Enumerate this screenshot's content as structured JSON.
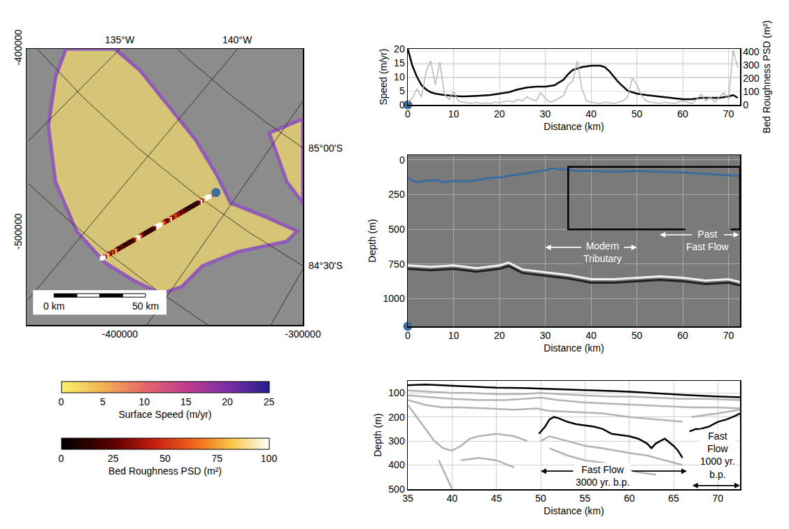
{
  "chart_data": [
    {
      "type": "map",
      "xlim": [
        -451000,
        -300000
      ],
      "ylim": [
        -550000,
        -400000
      ],
      "xticks": [
        -400000,
        -300000
      ],
      "yticks": [
        -500000,
        -400000
      ],
      "grid": false,
      "graticule": [
        {
          "label": "135°W",
          "x": [
            -400000,
            -450000
          ],
          "y": [
            -400000,
            -450000
          ]
        },
        {
          "label": "140°W",
          "x": [
            -335700,
            -450000
          ],
          "y": [
            -400000,
            -536100
          ]
        },
        {
          "x": [
            -300000,
            -385200
          ],
          "y": [
            -428400,
            -550000
          ]
        },
        {
          "x": [
            -300000,
            -317500
          ],
          "y": [
            -519600,
            -550000
          ]
        },
        {
          "label": "85°00'S",
          "x": [
            -300000,
            -320000,
            -340000,
            -360000,
            -368700
          ],
          "y": [
            -453800,
            -439900,
            -424700,
            -407800,
            -400000
          ]
        },
        {
          "label": "84°30'S",
          "x": [
            -300000,
            -330000,
            -360000,
            -390000,
            -420000,
            -445200
          ],
          "y": [
            -517900,
            -499300,
            -478100,
            -454000,
            -426400,
            -400000
          ]
        },
        {
          "x": [
            -352000,
            -380000,
            -410000,
            -430000,
            -450000
          ],
          "y": [
            -550000,
            -531000,
            -508200,
            -491400,
            -473200
          ]
        }
      ],
      "regions": [
        {
          "color": "#e3cf73",
          "x": [
            -429500,
            -402700,
            -389300,
            -373900,
            -358600,
            -347100,
            -339500,
            -320300,
            -303100,
            -308800,
            -335600,
            -354800,
            -366300,
            -377800,
            -393100,
            -408400,
            -423800,
            -435200,
            -439100,
            -435200
          ],
          "y": [
            -400000,
            -400000,
            -411400,
            -430400,
            -449400,
            -468400,
            -483700,
            -491300,
            -498900,
            -504600,
            -510300,
            -517900,
            -529300,
            -533100,
            -525500,
            -516000,
            -498900,
            -472200,
            -441800,
            -415200
          ]
        },
        {
          "color": "#e3cf73",
          "x": [
            -318400,
            -300000,
            -300000,
            -308800
          ],
          "y": [
            -445600,
            -438000,
            -483700,
            -472200
          ]
        }
      ],
      "track": {
        "x": [
          -347500,
          -410300
        ],
        "y": [
          -478000,
          -514100
        ],
        "distance": [
          0,
          72.5
        ]
      },
      "start_marker": {
        "color": "#3b6d9e"
      },
      "scale_bar": {
        "x": -436000,
        "y": -533000,
        "ticks": [
          {
            "value": 0,
            "label": "0 km"
          },
          {
            "value": 50000,
            "label": "50 km"
          }
        ]
      },
      "colorbars": [
        {
          "title": "Surface Speed (m/yr)",
          "range": [
            0,
            25
          ],
          "ticks": [
            0,
            5,
            10,
            15,
            20,
            25
          ]
        },
        {
          "title": "Bed Roughness PSD (m²)",
          "range": [
            0,
            100
          ],
          "ticks": [
            0,
            25,
            50,
            75,
            100
          ]
        }
      ]
    },
    {
      "type": "line",
      "xlabel": "Distance (km)",
      "ylabel": "Speed (m/yr)",
      "y2label": "Bed Roughness PSD (m²)",
      "xlim": [
        0,
        72.5
      ],
      "ylim": [
        0,
        20
      ],
      "y2lim": [
        0,
        420
      ],
      "xticks": [
        0,
        10,
        20,
        30,
        40,
        50,
        60,
        70
      ],
      "yticks": [
        0,
        5,
        10,
        15,
        20
      ],
      "y2ticks": [
        0,
        100,
        200,
        300,
        400
      ],
      "grid": true,
      "series": [
        {
          "color": "#b8b8b8",
          "axis": "y2",
          "x": [
            0,
            1,
            2,
            3,
            4,
            5,
            6,
            7,
            8,
            9,
            10,
            11,
            12,
            13,
            14,
            15,
            16,
            17,
            18,
            19,
            20,
            21,
            22,
            23,
            24,
            25,
            26,
            27,
            28,
            29,
            30,
            31,
            32,
            33,
            34,
            35,
            36,
            37,
            38,
            39,
            40,
            41,
            42,
            43,
            44,
            45,
            46,
            47,
            48,
            49,
            50,
            51,
            52,
            53,
            54,
            55,
            56,
            57,
            58,
            59,
            60,
            61,
            62,
            63,
            64,
            65,
            66,
            67,
            68,
            69,
            70,
            71,
            72
          ],
          "values": [
            20,
            50,
            120,
            60,
            250,
            330,
            150,
            320,
            80,
            40,
            100,
            30,
            20,
            15,
            10,
            20,
            10,
            15,
            10,
            20,
            15,
            25,
            30,
            20,
            40,
            30,
            60,
            40,
            30,
            90,
            50,
            20,
            30,
            50,
            70,
            150,
            180,
            330,
            120,
            30,
            20,
            15,
            10,
            20,
            15,
            10,
            20,
            30,
            60,
            200,
            150,
            70,
            30,
            20,
            15,
            10,
            20,
            15,
            10,
            20,
            30,
            20,
            10,
            40,
            80,
            30,
            60,
            20,
            60,
            90,
            40,
            410,
            280
          ]
        },
        {
          "color": "#000000",
          "x": [
            0,
            1,
            2,
            3,
            4,
            5,
            6,
            8,
            10,
            12,
            15,
            18,
            20,
            22,
            24,
            26,
            28,
            30,
            32,
            34,
            35,
            36,
            38,
            40,
            42,
            43,
            44,
            46,
            48,
            50,
            52,
            55,
            58,
            60,
            62,
            64,
            66,
            68,
            70,
            71,
            72
          ],
          "values": [
            20,
            14,
            10,
            7,
            5.5,
            4.5,
            4,
            3.5,
            3.2,
            3,
            3.2,
            3.5,
            4,
            4.5,
            5.5,
            6.2,
            6.5,
            6.5,
            7,
            9,
            11,
            12.5,
            13.5,
            14,
            14,
            13.5,
            12,
            8,
            5,
            4,
            3.5,
            3,
            2.5,
            2,
            2,
            2.5,
            2.5,
            2.5,
            3,
            3.5,
            2.5
          ]
        }
      ],
      "start_marker": {
        "x": 0,
        "y": 0,
        "color": "#3b6d9e"
      }
    },
    {
      "type": "radargram",
      "xlabel": "Distance (km)",
      "ylabel": "Depth (m)",
      "xlim": [
        0,
        72.5
      ],
      "ylim": [
        1200,
        -35
      ],
      "xticks": [
        0,
        10,
        20,
        30,
        40,
        50,
        60,
        70
      ],
      "yticks": [
        0,
        250,
        500,
        750,
        1000
      ],
      "grid": true,
      "series": [
        {
          "color": "#f0f0f0",
          "x": [
            0,
            5,
            10,
            15,
            20,
            22,
            25,
            30,
            35,
            40,
            45,
            50,
            55,
            60,
            65,
            70,
            72.5
          ],
          "values": [
            760,
            770,
            760,
            780,
            760,
            740,
            790,
            810,
            830,
            860,
            860,
            850,
            840,
            850,
            870,
            860,
            880
          ]
        },
        {
          "color": "#202020",
          "x": [
            0,
            5,
            10,
            15,
            20,
            22,
            25,
            30,
            35,
            40,
            45,
            50,
            55,
            60,
            65,
            70,
            72.5
          ],
          "values": [
            785,
            795,
            785,
            805,
            785,
            765,
            815,
            835,
            855,
            885,
            885,
            875,
            865,
            875,
            895,
            885,
            905
          ]
        },
        {
          "color": "#3b6d9e",
          "x": [
            0,
            1,
            2,
            4,
            6,
            8,
            10,
            12,
            14,
            16,
            18,
            20,
            22,
            24,
            26,
            28,
            30,
            31,
            32,
            33,
            34,
            36,
            38,
            40,
            45,
            50,
            55,
            60,
            65,
            70,
            72.5
          ],
          "values": [
            130,
            150,
            160,
            150,
            145,
            160,
            150,
            155,
            150,
            140,
            130,
            125,
            115,
            105,
            95,
            85,
            75,
            65,
            60,
            70,
            65,
            75,
            80,
            80,
            85,
            80,
            85,
            90,
            100,
            110,
            115
          ]
        }
      ],
      "box": {
        "x": [
          35,
          72.5
        ],
        "y": [
          50,
          500
        ]
      },
      "start_marker": {
        "x": 0,
        "y": 1200,
        "color": "#3b6d9e"
      },
      "annotations": [
        {
          "lines": [
            "Modern",
            "Tributary"
          ],
          "x": 42.5,
          "y": 665,
          "arrow": {
            "x": [
              30,
              50
            ],
            "y": 630
          }
        },
        {
          "lines": [
            "Past",
            "Fast Flow"
          ],
          "x": 65.5,
          "y": 580,
          "arrow": {
            "x": [
              55,
              72.3
            ],
            "y": 540
          }
        }
      ]
    },
    {
      "type": "line",
      "xlabel": "Distance (km)",
      "ylabel": "Depth (m)",
      "xlim": [
        35,
        72.5
      ],
      "ylim": [
        500,
        50
      ],
      "xticks": [
        35,
        40,
        45,
        50,
        55,
        60,
        65,
        70
      ],
      "yticks": [
        100,
        200,
        300,
        400,
        500
      ],
      "grid": true,
      "series": [
        {
          "color": "#b3b3b3",
          "x": [
            35,
            38,
            40,
            42,
            45,
            48,
            50,
            52,
            55,
            58,
            60,
            63,
            66,
            69,
            72.5
          ],
          "values": [
            90,
            95,
            100,
            100,
            105,
            105,
            100,
            105,
            110,
            115,
            115,
            120,
            125,
            125,
            130
          ]
        },
        {
          "color": "#b3b3b3",
          "x": [
            35,
            38,
            40,
            43,
            46,
            50,
            52,
            55,
            58,
            61,
            64,
            67,
            70,
            72.5
          ],
          "values": [
            110,
            120,
            125,
            130,
            130,
            120,
            130,
            140,
            145,
            150,
            155,
            160,
            160,
            165
          ]
        },
        {
          "color": "#b3b3b3",
          "x": [
            35,
            37,
            39,
            41,
            44,
            47,
            49.5,
            51,
            54,
            57,
            60,
            63,
            66
          ],
          "values": [
            130,
            150,
            160,
            160,
            165,
            170,
            165,
            175,
            180,
            185,
            200,
            210,
            220
          ]
        },
        {
          "color": "#b3b3b3",
          "x": [
            35,
            36,
            37,
            38,
            39,
            40,
            41,
            42,
            43,
            45,
            47,
            48.5
          ],
          "values": [
            150,
            200,
            250,
            300,
            330,
            340,
            320,
            290,
            280,
            270,
            280,
            300
          ]
        },
        {
          "color": "#b3b3b3",
          "x": [
            38.5,
            39,
            39.5,
            40
          ],
          "values": [
            380,
            420,
            460,
            500
          ]
        },
        {
          "color": "#b3b3b3",
          "x": [
            50,
            51,
            53,
            55,
            57,
            60,
            62,
            64,
            66
          ],
          "values": [
            300,
            280,
            300,
            320,
            330,
            350,
            360,
            380,
            400
          ]
        },
        {
          "color": "#b3b3b3",
          "x": [
            51,
            53,
            55,
            57,
            59,
            61,
            63
          ],
          "values": [
            330,
            360,
            380,
            390,
            410,
            430,
            440
          ]
        },
        {
          "color": "#b3b3b3",
          "x": [
            41,
            43,
            45,
            47
          ],
          "values": [
            380,
            370,
            380,
            410
          ]
        },
        {
          "color": "#b3b3b3",
          "x": [
            67,
            69,
            70,
            72.5
          ],
          "values": [
            200,
            190,
            185,
            170
          ]
        },
        {
          "color": "#000000",
          "x": [
            35,
            37,
            40,
            43,
            45,
            48,
            50,
            53,
            55,
            58,
            60,
            62,
            64,
            66,
            68,
            70,
            72.5
          ],
          "values": [
            68,
            65,
            70,
            75,
            78,
            80,
            82,
            85,
            88,
            92,
            95,
            100,
            105,
            108,
            112,
            115,
            118
          ]
        },
        {
          "color": "#000000",
          "x": [
            49.8,
            50.5,
            51,
            51.5,
            52,
            53,
            54,
            55,
            56,
            57,
            58,
            59,
            60,
            61,
            62,
            62.5,
            63,
            64,
            65,
            65.5,
            66
          ],
          "values": [
            270,
            240,
            210,
            200,
            205,
            220,
            230,
            235,
            240,
            250,
            270,
            275,
            280,
            290,
            310,
            330,
            310,
            290,
            320,
            340,
            370
          ]
        },
        {
          "color": "#000000",
          "x": [
            66.8,
            67.5,
            68,
            69,
            70,
            71,
            72,
            72.5
          ],
          "values": [
            260,
            250,
            250,
            240,
            220,
            210,
            195,
            185
          ]
        }
      ],
      "annotations": [
        {
          "lines": [
            "Fast Flow",
            "3000 yr. b.p."
          ],
          "x": 57,
          "y": 445,
          "arrow": {
            "x": [
              50,
              66.5
            ],
            "y": 425
          }
        },
        {
          "lines": [
            "Fast",
            "Flow",
            "1000 yr.",
            "b.p."
          ],
          "x": 70,
          "y": 360,
          "arrow": {
            "x": [
              67,
              72.5
            ],
            "y": 485
          }
        }
      ]
    }
  ]
}
